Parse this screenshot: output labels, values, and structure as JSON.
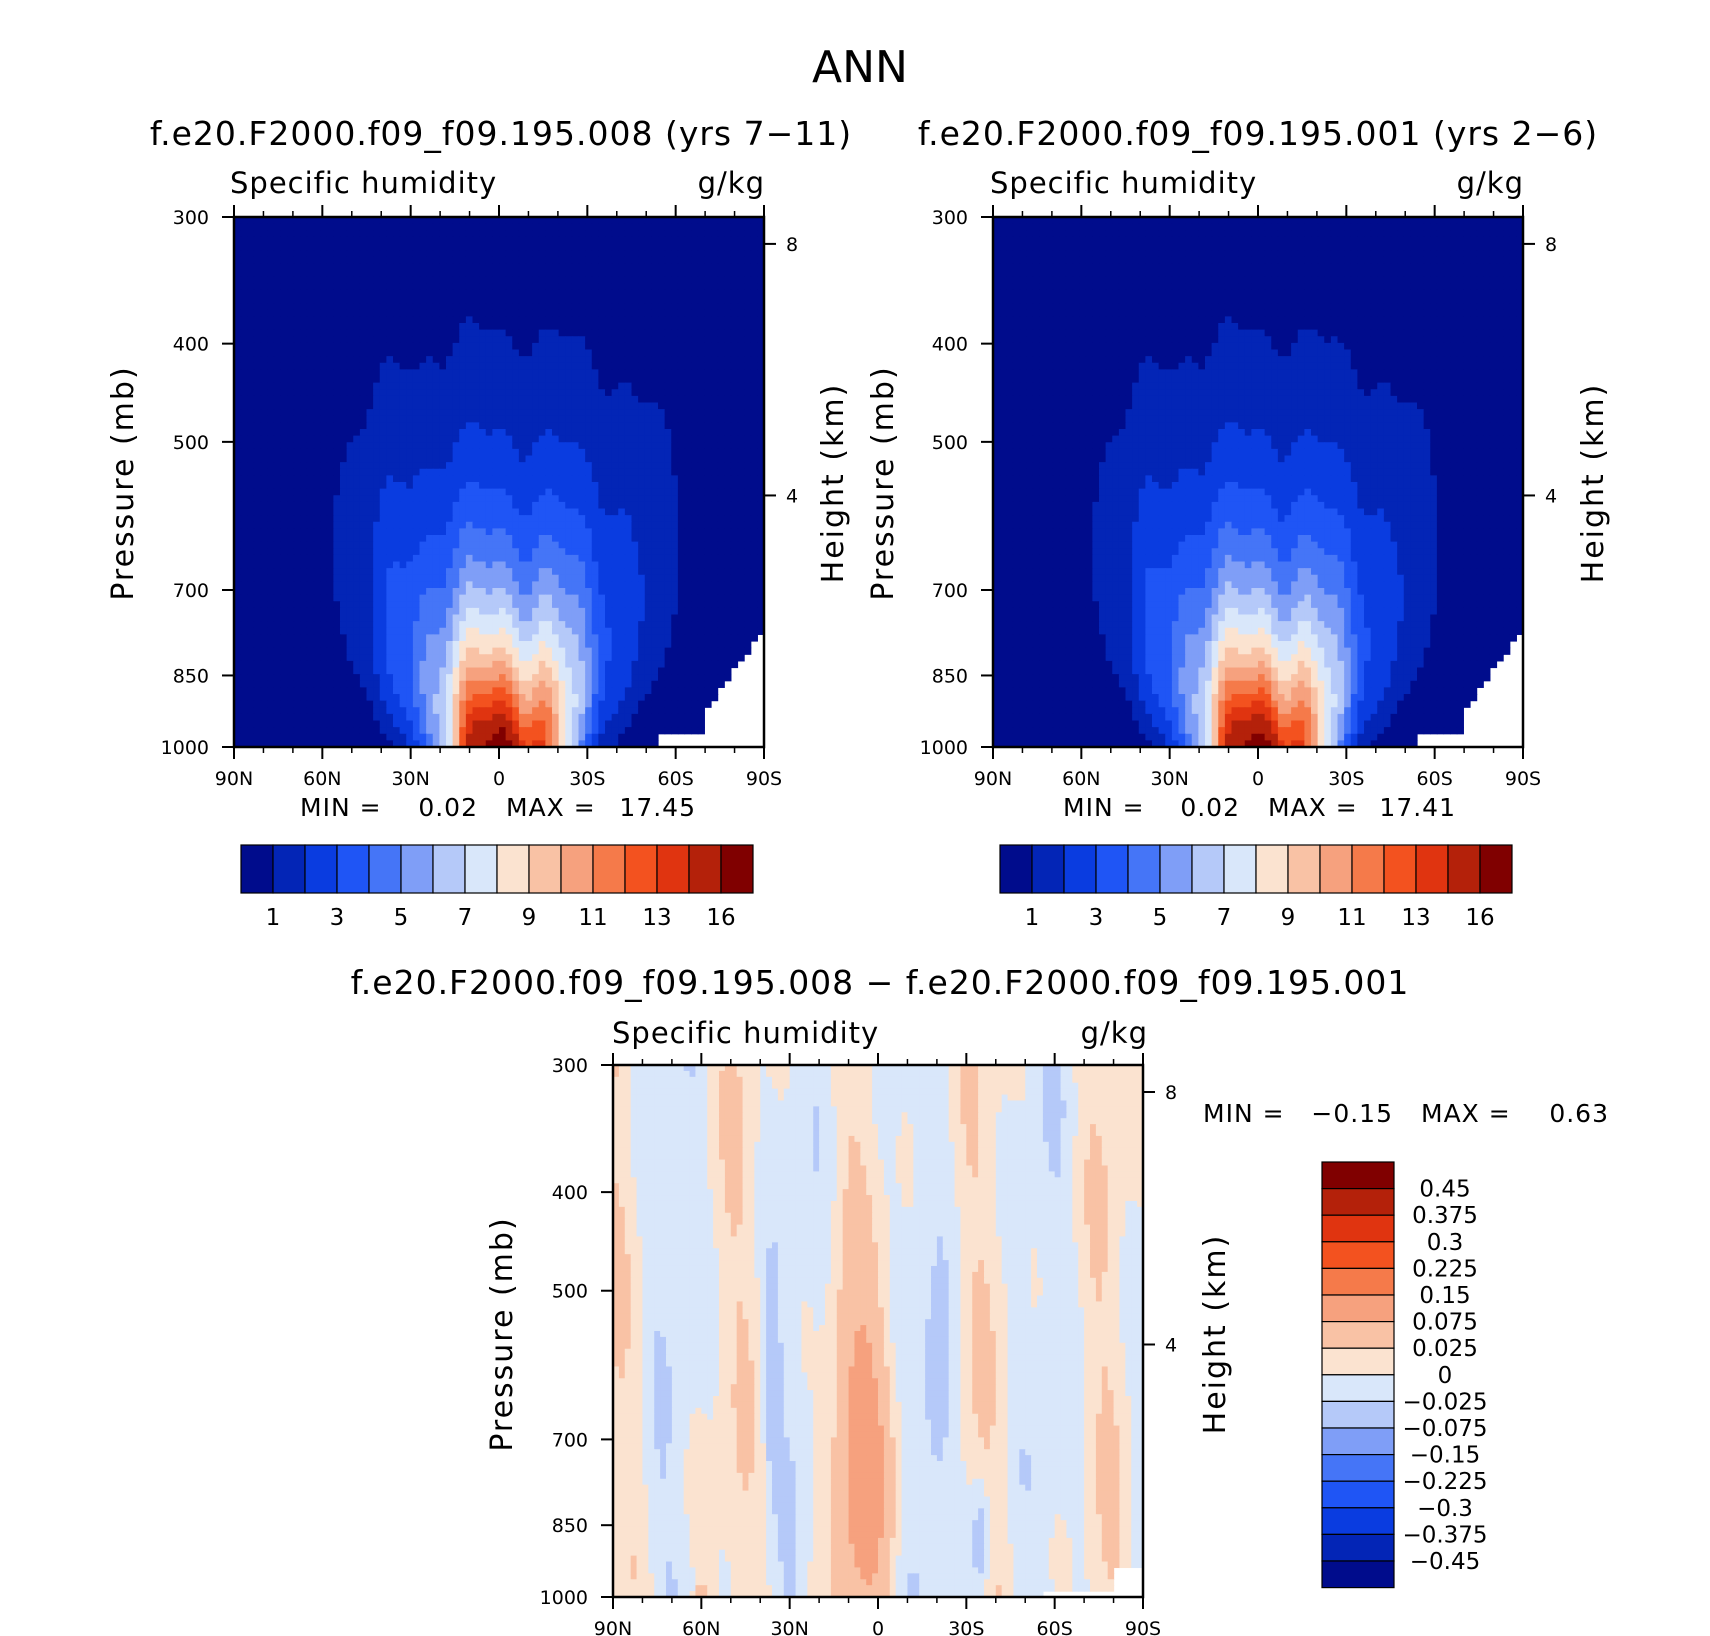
{
  "figure": {
    "title": "ANN"
  },
  "chart_data": [
    {
      "type": "contour",
      "title": "f.e20.F2000.f09_f09.195.008 (yrs 7−11)",
      "left_label": "Specific humidity",
      "right_label": "g/kg",
      "ylabel": "Pressure (mb)",
      "y2label": "Height (km)",
      "xticks": [
        "90N",
        "60N",
        "30N",
        "0",
        "30S",
        "60S",
        "90S"
      ],
      "yticks": [
        "300",
        "400",
        "500",
        "700",
        "850",
        "1000"
      ],
      "y2ticks": [
        "8",
        "4"
      ],
      "min_text": "MIN =",
      "min_value": "0.02",
      "max_text": "MAX =",
      "max_value": "17.45",
      "levels": [
        1,
        2,
        3,
        4,
        5,
        6,
        7,
        8,
        9,
        10,
        11,
        12,
        13,
        14,
        16
      ],
      "colorbar_labels": [
        "1",
        "3",
        "5",
        "7",
        "9",
        "11",
        "13",
        "16"
      ],
      "peak_value": 17.45,
      "peak_latitude": -2,
      "ylim": [
        1000,
        300
      ],
      "xlim": [
        90,
        -90
      ]
    },
    {
      "type": "contour",
      "title": "f.e20.F2000.f09_f09.195.001 (yrs 2−6)",
      "left_label": "Specific humidity",
      "right_label": "g/kg",
      "ylabel": "Pressure (mb)",
      "y2label": "Height (km)",
      "xticks": [
        "90N",
        "60N",
        "30N",
        "0",
        "30S",
        "60S",
        "90S"
      ],
      "yticks": [
        "300",
        "400",
        "500",
        "700",
        "850",
        "1000"
      ],
      "y2ticks": [
        "8",
        "4"
      ],
      "min_text": "MIN =",
      "min_value": "0.02",
      "max_text": "MAX =",
      "max_value": "17.41",
      "levels": [
        1,
        2,
        3,
        4,
        5,
        6,
        7,
        8,
        9,
        10,
        11,
        12,
        13,
        14,
        16
      ],
      "colorbar_labels": [
        "1",
        "3",
        "5",
        "7",
        "9",
        "11",
        "13",
        "16"
      ],
      "peak_value": 17.41,
      "peak_latitude": -2,
      "ylim": [
        1000,
        300
      ],
      "xlim": [
        90,
        -90
      ]
    },
    {
      "type": "contour",
      "title": "f.e20.F2000.f09_f09.195.008 − f.e20.F2000.f09_f09.195.001",
      "left_label": "Specific humidity",
      "right_label": "g/kg",
      "ylabel": "Pressure (mb)",
      "y2label": "Height (km)",
      "xticks": [
        "90N",
        "60N",
        "30N",
        "0",
        "30S",
        "60S",
        "90S"
      ],
      "yticks": [
        "300",
        "400",
        "500",
        "700",
        "850",
        "1000"
      ],
      "y2ticks": [
        "8",
        "4"
      ],
      "min_text": "MIN =",
      "min_value": "−0.15",
      "max_text": "MAX =",
      "max_value": "0.63",
      "levels": [
        -0.45,
        -0.375,
        -0.3,
        -0.225,
        -0.15,
        -0.075,
        -0.025,
        0,
        0.025,
        0.075,
        0.15,
        0.225,
        0.3,
        0.375,
        0.45
      ],
      "colorbar_labels": [
        "0.45",
        "0.375",
        "0.3",
        "0.225",
        "0.15",
        "0.075",
        "0.025",
        "0",
        "−0.025",
        "−0.075",
        "−0.15",
        "−0.225",
        "−0.3",
        "−0.375",
        "−0.45"
      ],
      "ylim": [
        1000,
        300
      ],
      "xlim": [
        90,
        -90
      ]
    }
  ],
  "colors": {
    "abs_palette": [
      "#000c8c",
      "#0325b6",
      "#0a3ce0",
      "#1f55f5",
      "#4575f7",
      "#7f9ef7",
      "#b5c9f9",
      "#d9e7fa",
      "#fbe3d0",
      "#f9c2a5",
      "#f6a17e",
      "#f57a4a",
      "#f3521f",
      "#e03410",
      "#b4210a",
      "#800000"
    ],
    "diff_palette": [
      "#000c8c",
      "#0325b6",
      "#0a3ce0",
      "#1f55f5",
      "#4575f7",
      "#7f9ef7",
      "#b5c9f9",
      "#d9e7fa",
      "#fbe3d0",
      "#f9c2a5",
      "#f6a17e",
      "#f57a4a",
      "#f3521f",
      "#e03410",
      "#b4210a",
      "#800000"
    ]
  }
}
